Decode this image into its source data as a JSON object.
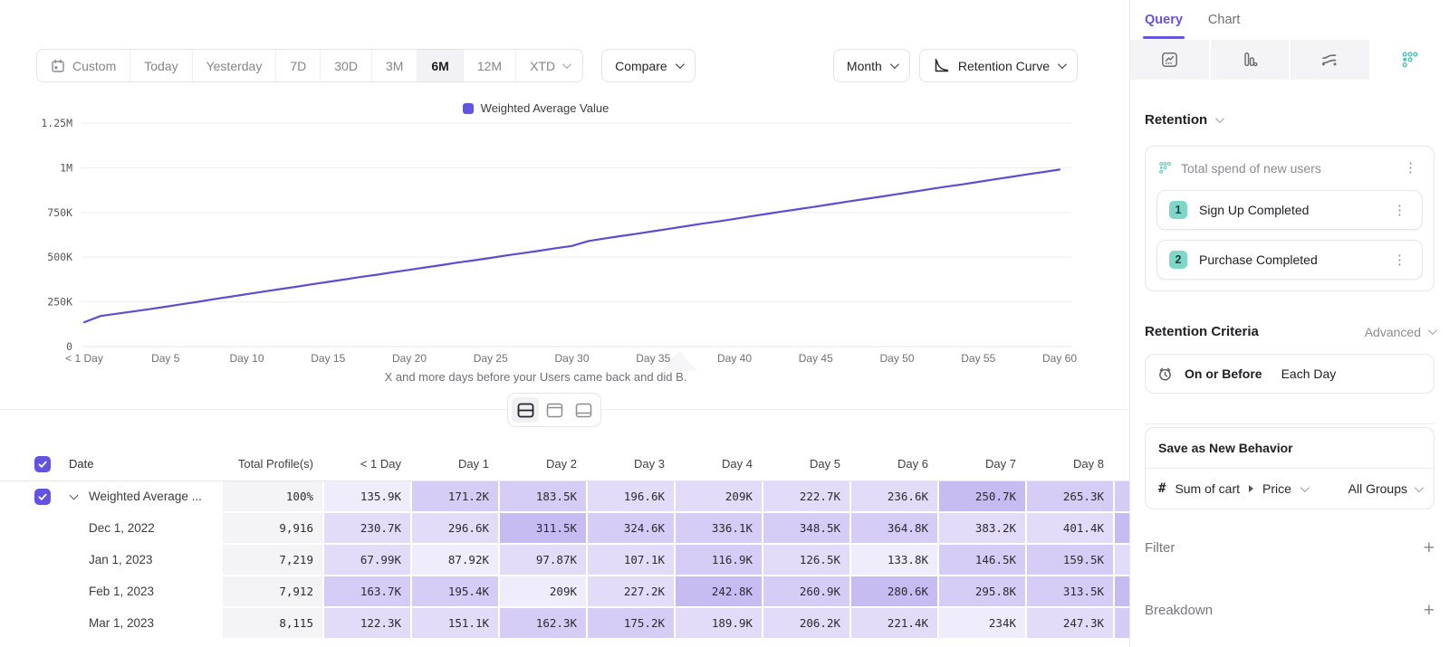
{
  "toolbar": {
    "ranges": [
      "Custom",
      "Today",
      "Yesterday",
      "7D",
      "30D",
      "3M",
      "6M",
      "12M",
      "XTD"
    ],
    "active_range": "6M",
    "compare_label": "Compare",
    "granularity_label": "Month",
    "chart_type_label": "Retention Curve"
  },
  "chart_data": {
    "type": "line",
    "legend": "Weighted Average Value",
    "legend_color": "#6355e4",
    "line_color": "#5b4ed1",
    "caption": "X and more days before your Users came back and did B.",
    "x_tick_labels": [
      "< 1 Day",
      "Day 5",
      "Day 10",
      "Day 15",
      "Day 20",
      "Day 25",
      "Day 30",
      "Day 35",
      "Day 40",
      "Day 45",
      "Day 50",
      "Day 55",
      "Day 60"
    ],
    "y_tick_labels": [
      "0",
      "250K",
      "500K",
      "750K",
      "1M",
      "1.25M"
    ],
    "ylim_thousands": [
      0,
      1250
    ],
    "x_days": [
      0,
      60
    ],
    "values_thousands": [
      135.9,
      171.2,
      183.5,
      196.6,
      209,
      222.7,
      236.6,
      250.7,
      265.3,
      279,
      293,
      307,
      321,
      334,
      348,
      362,
      375,
      389,
      402,
      416,
      429,
      443,
      456,
      470,
      483,
      496,
      510,
      523,
      536,
      550,
      563,
      590,
      604,
      618,
      631,
      645,
      659,
      673,
      687,
      700,
      714,
      728,
      742,
      756,
      769,
      783,
      797,
      811,
      825,
      838,
      852,
      866,
      880,
      894,
      907,
      921,
      935,
      949,
      963,
      976,
      990
    ]
  },
  "table": {
    "columns": [
      "Date",
      "Total Profile(s)",
      "< 1 Day",
      "Day 1",
      "Day 2",
      "Day 3",
      "Day 4",
      "Day 5",
      "Day 6",
      "Day 7",
      "Day 8"
    ],
    "rows": [
      {
        "label": "Weighted Average ...",
        "expandable": true,
        "checked": true,
        "total": "100%",
        "total_gray": true,
        "cells": [
          "135.9K",
          "171.2K",
          "183.5K",
          "196.6K",
          "209K",
          "222.7K",
          "236.6K",
          "250.7K",
          "265.3K"
        ],
        "heat": [
          1,
          3,
          3,
          2,
          2,
          2,
          2,
          4,
          3
        ],
        "partial_heat": 3
      },
      {
        "label": "Dec 1, 2022",
        "total": "9,916",
        "cells": [
          "230.7K",
          "296.6K",
          "311.5K",
          "324.6K",
          "336.1K",
          "348.5K",
          "364.8K",
          "383.2K",
          "401.4K"
        ],
        "heat": [
          2,
          2,
          4,
          3,
          3,
          3,
          3,
          2,
          2
        ],
        "partial_heat": 4
      },
      {
        "label": "Jan 1, 2023",
        "total": "7,219",
        "cells": [
          "67.99K",
          "87.92K",
          "97.87K",
          "107.1K",
          "116.9K",
          "126.5K",
          "133.8K",
          "146.5K",
          "159.5K"
        ],
        "heat": [
          2,
          1,
          2,
          2,
          3,
          2,
          1,
          3,
          3
        ],
        "partial_heat": 2
      },
      {
        "label": "Feb 1, 2023",
        "total": "7,912",
        "cells": [
          "163.7K",
          "195.4K",
          "209K",
          "227.2K",
          "242.8K",
          "260.9K",
          "280.6K",
          "295.8K",
          "313.5K"
        ],
        "heat": [
          3,
          3,
          1,
          2,
          4,
          3,
          4,
          3,
          3
        ],
        "partial_heat": 4
      },
      {
        "label": "Mar 1, 2023",
        "total": "8,115",
        "cells": [
          "122.3K",
          "151.1K",
          "162.3K",
          "175.2K",
          "189.9K",
          "206.2K",
          "221.4K",
          "234K",
          "247.3K"
        ],
        "heat": [
          2,
          2,
          3,
          3,
          2,
          2,
          2,
          1,
          2
        ],
        "partial_heat": 3
      }
    ]
  },
  "sidebar": {
    "tabs": {
      "query": "Query",
      "chart": "Chart",
      "active": "Query"
    },
    "view_icons": [
      "insights",
      "funnels",
      "flows",
      "retention"
    ],
    "active_view": "retention",
    "section_label": "Retention",
    "behavior": {
      "title": "Total spend of new users",
      "steps": [
        {
          "num": "1",
          "label": "Sign Up Completed"
        },
        {
          "num": "2",
          "label": "Purchase Completed"
        }
      ]
    },
    "criteria": {
      "label": "Retention Criteria",
      "mode": "Advanced",
      "condition": "On or Before",
      "unit": "Each Day"
    },
    "save_button_label": "Save as New Behavior",
    "metric": {
      "prefix": "#",
      "name": "Sum of cart",
      "property": "Price",
      "groups": "All Groups"
    },
    "filter_label": "Filter",
    "breakdown_label": "Breakdown"
  },
  "colors": {
    "accent": "#6253e1",
    "teal": "#4cc3b2",
    "heat": [
      "#efecfb",
      "#e2dcf8",
      "#d5cdf5",
      "#c7bcf2"
    ]
  }
}
